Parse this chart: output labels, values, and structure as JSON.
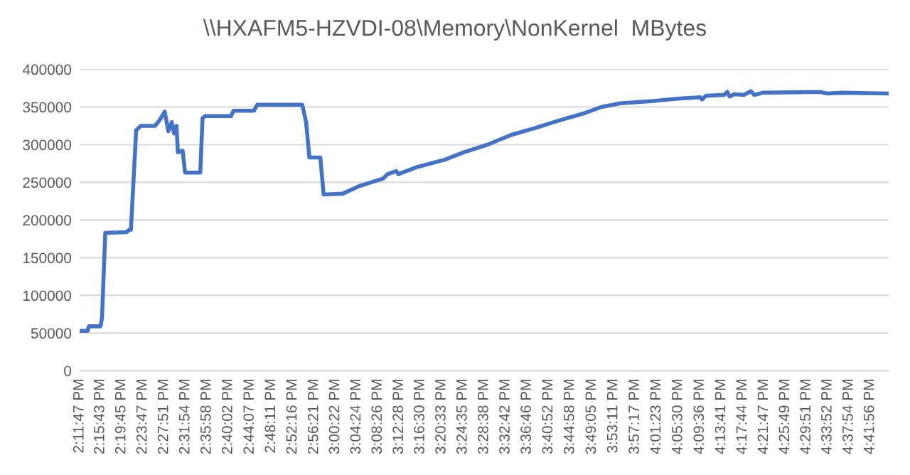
{
  "chart_data": {
    "type": "line",
    "title": "\\\\HXAFM5-HZVDI-08\\Memory\\NonKernel  MBytes",
    "series": [
      {
        "color": "#4472c4",
        "x": [
          14.1964,
          14.2221,
          14.2257,
          14.2627,
          14.2672,
          14.2776,
          14.3452,
          14.3529,
          14.3587,
          14.3754,
          14.3903,
          14.4354,
          14.4503,
          14.4656,
          14.4773,
          14.4881,
          14.4953,
          14.503,
          14.5075,
          14.5224,
          14.5301,
          14.5783,
          14.5855,
          14.5932,
          14.6757,
          14.6834,
          14.7479,
          14.7587,
          14.9012,
          14.9133,
          14.9237,
          14.9584,
          14.9688,
          15.0292,
          15.0815,
          15.1568,
          15.1717,
          15.1988,
          15.2051,
          15.2619,
          15.3521,
          15.4125,
          15.4873,
          15.5626,
          15.6379,
          15.7128,
          15.7881,
          15.8481,
          15.9085,
          16.0135,
          16.0888,
          16.161,
          16.1668,
          16.179,
          16.2358,
          16.2466,
          16.2539,
          16.2692,
          16.299,
          16.3215,
          16.3323,
          16.3594,
          16.5397,
          16.5623,
          16.6073,
          16.7575
        ],
        "values": [
          53000,
          53000,
          59000,
          59000,
          70000,
          183000,
          184000,
          187000,
          187000,
          319000,
          325000,
          325000,
          333000,
          344000,
          318000,
          330000,
          315000,
          325000,
          290000,
          292000,
          263000,
          263000,
          335000,
          338000,
          338000,
          345000,
          345000,
          353000,
          353000,
          330000,
          283000,
          283000,
          234000,
          235000,
          245000,
          255000,
          261000,
          265000,
          261000,
          270000,
          280000,
          290000,
          300000,
          313000,
          322000,
          332000,
          341000,
          350000,
          355000,
          358000,
          361000,
          363000,
          360000,
          365000,
          366000,
          370000,
          364000,
          367000,
          366000,
          371000,
          366000,
          369000,
          370000,
          368000,
          369000,
          368000
        ]
      }
    ],
    "xlim": [
      14.1964,
      16.7575
    ],
    "xticks": [
      {
        "value": 14.1964,
        "label": "2:11:47 PM"
      },
      {
        "value": 14.2619,
        "label": "2:15:43 PM"
      },
      {
        "value": 14.3292,
        "label": "2:19:45 PM"
      },
      {
        "value": 14.3964,
        "label": "2:23:47 PM"
      },
      {
        "value": 14.4642,
        "label": "2:27:51 PM"
      },
      {
        "value": 14.5317,
        "label": "2:31:54 PM"
      },
      {
        "value": 14.5994,
        "label": "2:35:58 PM"
      },
      {
        "value": 14.6672,
        "label": "2:40:02 PM"
      },
      {
        "value": 14.7353,
        "label": "2:44:07 PM"
      },
      {
        "value": 14.8031,
        "label": "2:48:11 PM"
      },
      {
        "value": 14.8711,
        "label": "2:52:16 PM"
      },
      {
        "value": 14.9392,
        "label": "2:56:21 PM"
      },
      {
        "value": 15.0061,
        "label": "3:00:22 PM"
      },
      {
        "value": 15.0733,
        "label": "3:04:24 PM"
      },
      {
        "value": 15.1406,
        "label": "3:08:26 PM"
      },
      {
        "value": 15.2078,
        "label": "3:12:28 PM"
      },
      {
        "value": 15.275,
        "label": "3:16:30 PM"
      },
      {
        "value": 15.3425,
        "label": "3:20:33 PM"
      },
      {
        "value": 15.4097,
        "label": "3:24:35 PM"
      },
      {
        "value": 15.4772,
        "label": "3:28:38 PM"
      },
      {
        "value": 15.545,
        "label": "3:32:42 PM"
      },
      {
        "value": 15.6128,
        "label": "3:36:46 PM"
      },
      {
        "value": 15.6811,
        "label": "3:40:52 PM"
      },
      {
        "value": 15.7494,
        "label": "3:44:58 PM"
      },
      {
        "value": 15.8181,
        "label": "3:49:05 PM"
      },
      {
        "value": 15.8864,
        "label": "3:53:11 PM"
      },
      {
        "value": 15.9547,
        "label": "3:57:17 PM"
      },
      {
        "value": 16.0231,
        "label": "4:01:23 PM"
      },
      {
        "value": 16.0917,
        "label": "4:05:30 PM"
      },
      {
        "value": 16.16,
        "label": "4:09:36 PM"
      },
      {
        "value": 16.2281,
        "label": "4:13:41 PM"
      },
      {
        "value": 16.2956,
        "label": "4:17:44 PM"
      },
      {
        "value": 16.3631,
        "label": "4:21:47 PM"
      },
      {
        "value": 16.4303,
        "label": "4:25:49 PM"
      },
      {
        "value": 16.4975,
        "label": "4:29:51 PM"
      },
      {
        "value": 16.5644,
        "label": "4:33:52 PM"
      },
      {
        "value": 16.6317,
        "label": "4:37:54 PM"
      },
      {
        "value": 16.6989,
        "label": "4:41:56 PM"
      }
    ],
    "ylim": [
      0,
      400000
    ],
    "yticks": [
      0,
      50000,
      100000,
      150000,
      200000,
      250000,
      300000,
      350000,
      400000
    ],
    "grid": "y"
  }
}
